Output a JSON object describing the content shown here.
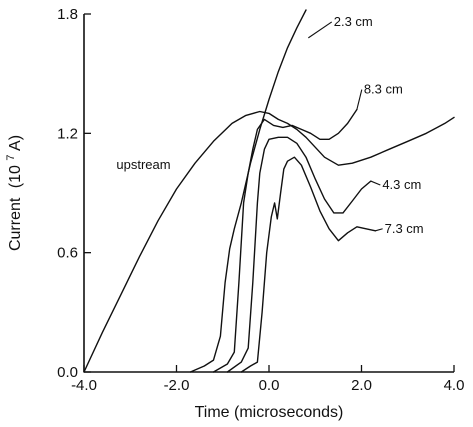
{
  "chart_data": {
    "type": "line",
    "xlabel": "Time (microseconds)",
    "ylabel": "Current",
    "ylabel_unit_base": "(10",
    "ylabel_unit_exp": "7",
    "ylabel_unit_tail": "A)",
    "xlim": [
      -4.0,
      4.0
    ],
    "ylim": [
      0.0,
      1.8
    ],
    "x_ticks": [
      -4.0,
      -2.0,
      0.0,
      2.0,
      4.0
    ],
    "x_tick_labels": [
      "-4.0",
      "-2.0",
      "0.0",
      "2.0",
      "4.0"
    ],
    "y_ticks": [
      0.0,
      0.6,
      1.2,
      1.8
    ],
    "y_tick_labels": [
      "0.0",
      "0.6",
      "1.2",
      "1.8"
    ],
    "grid": false,
    "series": [
      {
        "name": "upstream",
        "x": [
          -4.0,
          -3.6,
          -3.2,
          -2.8,
          -2.4,
          -2.0,
          -1.6,
          -1.2,
          -0.8,
          -0.5,
          -0.2,
          0.0,
          0.2,
          0.4,
          0.6,
          0.8,
          1.0,
          1.2,
          1.5,
          1.8,
          2.2,
          2.6,
          3.0,
          3.4,
          3.8,
          4.0
        ],
        "y": [
          0.0,
          0.2,
          0.39,
          0.58,
          0.76,
          0.92,
          1.05,
          1.16,
          1.25,
          1.29,
          1.31,
          1.3,
          1.27,
          1.25,
          1.22,
          1.18,
          1.13,
          1.08,
          1.04,
          1.05,
          1.08,
          1.12,
          1.16,
          1.2,
          1.25,
          1.28
        ]
      },
      {
        "name": "2.3 cm",
        "x": [
          -1.7,
          -1.4,
          -1.2,
          -1.05,
          -0.95,
          -0.85,
          -0.75,
          -0.6,
          -0.4,
          -0.2,
          0.0,
          0.2,
          0.4,
          0.6,
          0.8
        ],
        "y": [
          0.0,
          0.03,
          0.06,
          0.18,
          0.45,
          0.62,
          0.72,
          0.85,
          1.05,
          1.22,
          1.37,
          1.51,
          1.63,
          1.73,
          1.82
        ]
      },
      {
        "name": "8.3 cm",
        "x": [
          -1.2,
          -0.9,
          -0.75,
          -0.65,
          -0.55,
          -0.45,
          -0.35,
          -0.25,
          -0.1,
          0.1,
          0.3,
          0.5,
          0.7,
          0.9,
          1.1,
          1.3,
          1.5,
          1.7,
          1.9
        ],
        "y": [
          0.0,
          0.04,
          0.1,
          0.45,
          0.85,
          1.0,
          1.12,
          1.22,
          1.27,
          1.24,
          1.23,
          1.24,
          1.22,
          1.2,
          1.17,
          1.17,
          1.2,
          1.25,
          1.32
        ]
      },
      {
        "name": "4.3 cm",
        "x": [
          -0.9,
          -0.6,
          -0.45,
          -0.35,
          -0.25,
          -0.2,
          -0.1,
          0.0,
          0.2,
          0.4,
          0.6,
          0.8,
          1.0,
          1.2,
          1.4,
          1.6,
          1.8,
          2.0,
          2.2
        ],
        "y": [
          0.0,
          0.05,
          0.12,
          0.45,
          0.85,
          1.0,
          1.12,
          1.17,
          1.18,
          1.18,
          1.15,
          1.08,
          0.97,
          0.87,
          0.8,
          0.8,
          0.86,
          0.92,
          0.96
        ]
      },
      {
        "name": "7.3 cm",
        "x": [
          -0.6,
          -0.4,
          -0.25,
          -0.15,
          -0.05,
          0.05,
          0.12,
          0.18,
          0.25,
          0.32,
          0.4,
          0.55,
          0.7,
          0.9,
          1.1,
          1.3,
          1.5,
          1.7,
          1.9,
          2.1,
          2.3
        ],
        "y": [
          0.0,
          0.03,
          0.05,
          0.3,
          0.6,
          0.78,
          0.85,
          0.77,
          0.9,
          1.02,
          1.06,
          1.08,
          1.04,
          0.93,
          0.81,
          0.72,
          0.66,
          0.7,
          0.73,
          0.72,
          0.71
        ]
      }
    ],
    "annotations": [
      {
        "series": "2.3 cm",
        "text": "2.3 cm",
        "label_x": 1.4,
        "label_y": 1.74,
        "anchor_x": 0.85,
        "anchor_y": 1.68
      },
      {
        "series": "8.3 cm",
        "text": "8.3 cm",
        "label_x": 2.05,
        "label_y": 1.4,
        "anchor_x": 1.9,
        "anchor_y": 1.32
      },
      {
        "series": "4.3 cm",
        "text": "4.3 cm",
        "label_x": 2.45,
        "label_y": 0.92,
        "anchor_x": 2.2,
        "anchor_y": 0.96
      },
      {
        "series": "7.3 cm",
        "text": "7.3 cm",
        "label_x": 2.5,
        "label_y": 0.7,
        "anchor_x": 2.3,
        "anchor_y": 0.71
      },
      {
        "series": "upstream",
        "text": "upstream",
        "label_x": -3.3,
        "label_y": 1.02,
        "anchor_x": null,
        "anchor_y": null
      }
    ]
  }
}
